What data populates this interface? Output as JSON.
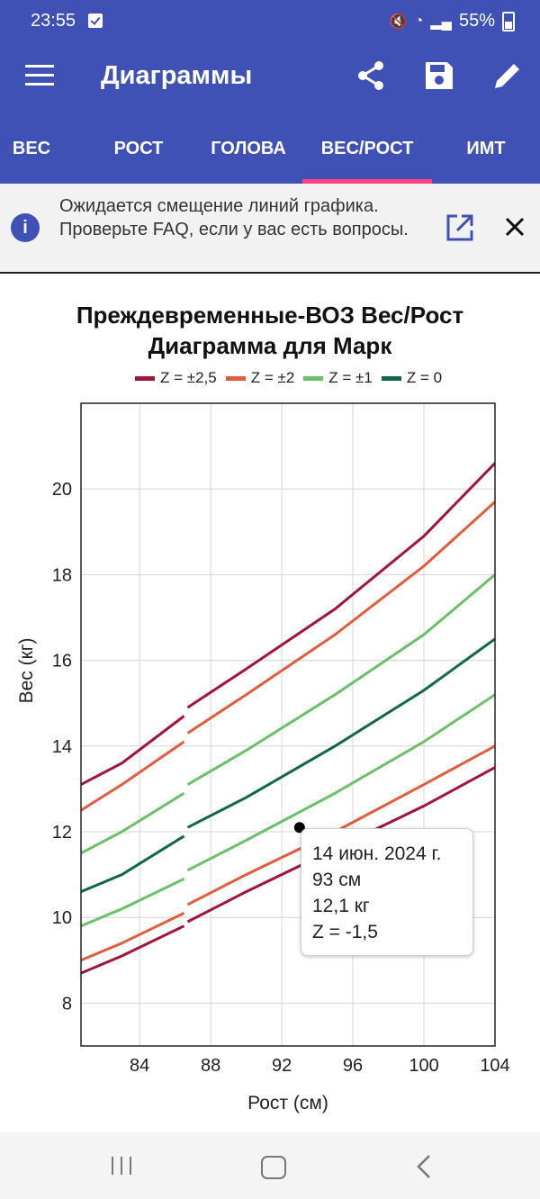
{
  "status": {
    "time": "23:55",
    "battery": "55%"
  },
  "app_bar": {
    "title": "Диаграммы"
  },
  "tabs": [
    "ВЕС",
    "РОСТ",
    "ГОЛОВА",
    "ВЕС/РОСТ",
    "ИМТ"
  ],
  "selected_tab": "ВЕС/РОСТ",
  "banner": {
    "text": "Ожидается смещение линий графика. Проверьте FAQ, если у вас есть вопросы.",
    "info": "i"
  },
  "colors": {
    "primary": "#3f51b5",
    "accent": "#ff4081"
  },
  "tooltip": {
    "date": "14 июн. 2024 г.",
    "height": "93 см",
    "weight": "12,1 кг",
    "z": "Z = -1,5"
  },
  "chart_data": {
    "type": "line",
    "title": "Преждевременные-ВОЗ Вес/Рост Диаграмма для Марк",
    "xlabel": "Рост (см)",
    "ylabel": "Вес (кг)",
    "xlim": [
      80.7,
      104
    ],
    "ylim": [
      7,
      22
    ],
    "x_ticks": [
      84,
      88,
      92,
      96,
      100,
      104
    ],
    "y_ticks": [
      8,
      10,
      12,
      14,
      16,
      18,
      20
    ],
    "grid": true,
    "legend_position": "top",
    "legend": [
      {
        "name": "Z = ±2,5",
        "color": "#a01538"
      },
      {
        "name": "Z = ±2",
        "color": "#e15d3f"
      },
      {
        "name": "Z = ±1",
        "color": "#6cc06a"
      },
      {
        "name": "Z = 0",
        "color": "#12674a"
      }
    ],
    "series": [
      {
        "name": "Z = +2,5",
        "color": "#a01538",
        "segments": [
          [
            [
              80.7,
              13.1
            ],
            [
              83,
              13.6
            ],
            [
              86.5,
              14.7
            ]
          ],
          [
            [
              86.7,
              14.9
            ],
            [
              90,
              15.8
            ],
            [
              95,
              17.2
            ],
            [
              100,
              18.9
            ],
            [
              104,
              20.6
            ]
          ]
        ]
      },
      {
        "name": "Z = +2",
        "color": "#e15d3f",
        "segments": [
          [
            [
              80.7,
              12.5
            ],
            [
              83,
              13.1
            ],
            [
              86.5,
              14.1
            ]
          ],
          [
            [
              86.7,
              14.3
            ],
            [
              90,
              15.2
            ],
            [
              95,
              16.6
            ],
            [
              100,
              18.2
            ],
            [
              104,
              19.7
            ]
          ]
        ]
      },
      {
        "name": "Z = +1",
        "color": "#6cc06a",
        "segments": [
          [
            [
              80.7,
              11.5
            ],
            [
              83,
              12.0
            ],
            [
              86.5,
              12.9
            ]
          ],
          [
            [
              86.7,
              13.1
            ],
            [
              90,
              13.9
            ],
            [
              95,
              15.2
            ],
            [
              100,
              16.6
            ],
            [
              104,
              18.0
            ]
          ]
        ]
      },
      {
        "name": "Z = 0",
        "color": "#12674a",
        "segments": [
          [
            [
              80.7,
              10.6
            ],
            [
              83,
              11.0
            ],
            [
              86.5,
              11.9
            ]
          ],
          [
            [
              86.7,
              12.1
            ],
            [
              90,
              12.8
            ],
            [
              95,
              14.0
            ],
            [
              100,
              15.3
            ],
            [
              104,
              16.5
            ]
          ]
        ]
      },
      {
        "name": "Z = -1",
        "color": "#6cc06a",
        "segments": [
          [
            [
              80.7,
              9.8
            ],
            [
              83,
              10.2
            ],
            [
              86.5,
              10.9
            ]
          ],
          [
            [
              86.7,
              11.1
            ],
            [
              90,
              11.8
            ],
            [
              95,
              12.9
            ],
            [
              100,
              14.1
            ],
            [
              104,
              15.2
            ]
          ]
        ]
      },
      {
        "name": "Z = -2",
        "color": "#e15d3f",
        "segments": [
          [
            [
              80.7,
              9.0
            ],
            [
              83,
              9.4
            ],
            [
              86.5,
              10.1
            ]
          ],
          [
            [
              86.7,
              10.3
            ],
            [
              90,
              11.0
            ],
            [
              95,
              12.0
            ],
            [
              100,
              13.1
            ],
            [
              104,
              14.0
            ]
          ]
        ]
      },
      {
        "name": "Z = -2,5",
        "color": "#a01538",
        "segments": [
          [
            [
              80.7,
              8.7
            ],
            [
              83,
              9.1
            ],
            [
              86.5,
              9.8
            ]
          ],
          [
            [
              86.7,
              9.9
            ],
            [
              90,
              10.6
            ],
            [
              95,
              11.6
            ],
            [
              100,
              12.6
            ],
            [
              104,
              13.5
            ]
          ]
        ]
      }
    ],
    "points": [
      {
        "x": 93,
        "y": 12.1
      }
    ]
  }
}
